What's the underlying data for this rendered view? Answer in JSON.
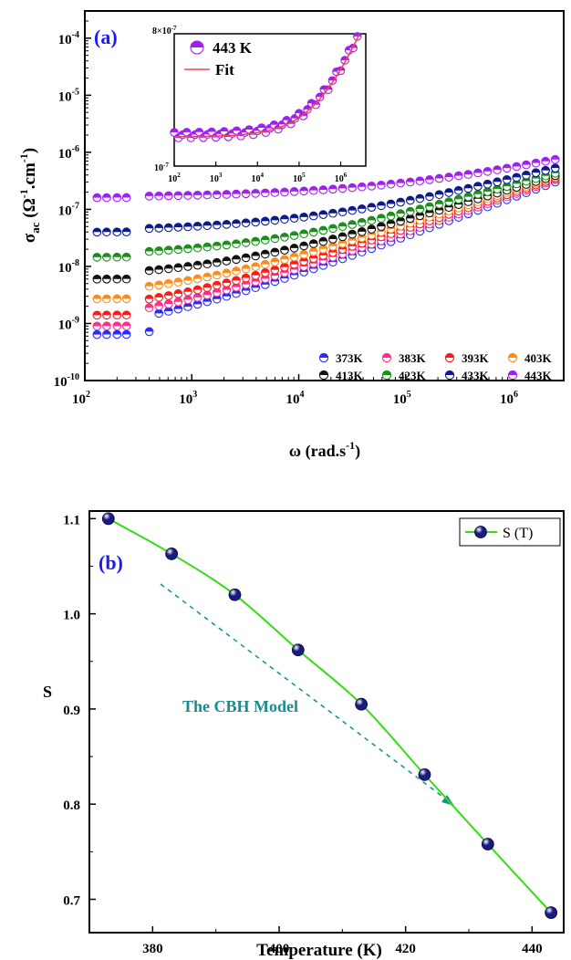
{
  "chart_data": [
    {
      "type": "scatter",
      "panel_label": "(a)",
      "xlabel": "ω (rad.s",
      "xlabel_sup": "-1",
      "xlabel_end": ")",
      "ylabel_parts": {
        "sigma": "σ",
        "sub": "ac",
        "mid": " (Ω",
        "sup1": "-1",
        "mid2": ".cm",
        "sup2": "-1",
        "end": ")"
      },
      "x_scale": "log",
      "y_scale": "log",
      "xlim": [
        100,
        3000000
      ],
      "ylim": [
        1e-10,
        0.0003
      ],
      "x_ticks": [
        {
          "base": "10",
          "exp": "2"
        },
        {
          "base": "10",
          "exp": "3"
        },
        {
          "base": "10",
          "exp": "4"
        },
        {
          "base": "10",
          "exp": "5"
        },
        {
          "base": "10",
          "exp": "6"
        }
      ],
      "y_ticks": [
        {
          "base": "10",
          "exp": "-10"
        },
        {
          "base": "10",
          "exp": "-9"
        },
        {
          "base": "10",
          "exp": "-8"
        },
        {
          "base": "10",
          "exp": "-7"
        },
        {
          "base": "10",
          "exp": "-6"
        },
        {
          "base": "10",
          "exp": "-5"
        },
        {
          "base": "10",
          "exp": "-4"
        }
      ],
      "legend_placement": "bottom-right",
      "series": [
        {
          "name": "373K",
          "color": "#2b2bff",
          "sigma_low": 6.4e-10,
          "sigma_high": 3e-07,
          "s": 1.1
        },
        {
          "name": "383K",
          "color": "#ff2d8c",
          "sigma_low": 9e-10,
          "sigma_high": 3.3e-07,
          "s": 1.063
        },
        {
          "name": "393K",
          "color": "#ff1a1a",
          "sigma_low": 1.4e-09,
          "sigma_high": 3.5e-07,
          "s": 1.02
        },
        {
          "name": "403K",
          "color": "#ff8c1a",
          "sigma_low": 2.7e-09,
          "sigma_high": 3.7e-07,
          "s": 0.962
        },
        {
          "name": "413K",
          "color": "#111111",
          "sigma_low": 6e-09,
          "sigma_high": 3.9e-07,
          "s": 0.905
        },
        {
          "name": "423K",
          "color": "#1a8f1a",
          "sigma_low": 1.45e-08,
          "sigma_high": 4.3e-07,
          "s": 0.831
        },
        {
          "name": "433K",
          "color": "#0d1a8c",
          "sigma_low": 4e-08,
          "sigma_high": 5.3e-07,
          "s": 0.758
        },
        {
          "name": "443K",
          "color": "#a020f0",
          "sigma_low": 1.6e-07,
          "sigma_high": 7.5e-07,
          "s": 0.686
        }
      ],
      "inset": {
        "legend_marker": "443 K",
        "legend_fit": "Fit",
        "fit_color": "#ff4040",
        "y_scale": "log",
        "x_scale": "log",
        "xlim": [
          100,
          4000000
        ],
        "ylim": [
          1e-07,
          8e-07
        ],
        "y_top_label": {
          "base": "8×10",
          "exp": "-7"
        },
        "y_bottom_label": {
          "base": "10",
          "exp": "-7"
        },
        "x_ticks": [
          {
            "base": "10",
            "exp": "2"
          },
          {
            "base": "10",
            "exp": "3"
          },
          {
            "base": "10",
            "exp": "4"
          },
          {
            "base": "10",
            "exp": "5"
          },
          {
            "base": "10",
            "exp": "6"
          }
        ]
      }
    },
    {
      "type": "line",
      "panel_label": "(b)",
      "xlabel": "Temperature (K)",
      "ylabel": "S",
      "xlim": [
        370,
        445
      ],
      "ylim": [
        0.665,
        1.108
      ],
      "x_ticks": [
        "380",
        "400",
        "420",
        "440"
      ],
      "y_ticks": [
        "0.7",
        "0.8",
        "0.9",
        "1.0",
        "1.1"
      ],
      "line_color": "#33dd11",
      "marker_color": "#1a1a80",
      "legend_label": "S (T)",
      "legend_placement": "top-right",
      "annotation": "The CBH Model",
      "annotation_color": "#1a8c8c",
      "x": [
        373,
        383,
        393,
        403,
        413,
        423,
        433,
        443
      ],
      "y": [
        1.1,
        1.063,
        1.02,
        0.962,
        0.905,
        0.831,
        0.758,
        0.686
      ]
    }
  ]
}
